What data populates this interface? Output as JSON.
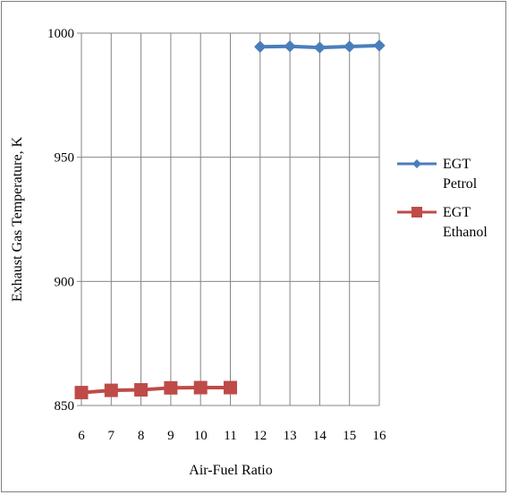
{
  "chart_data": {
    "type": "line",
    "title": "",
    "xlabel": "Air-Fuel Ratio",
    "ylabel": "Exhaust Gas Temperature, K",
    "x_categories": [
      "6",
      "7",
      "8",
      "9",
      "10",
      "11",
      "12",
      "13",
      "14",
      "15",
      "16"
    ],
    "y_ticks": [
      "850",
      "900",
      "950",
      "1000"
    ],
    "ylim": [
      850,
      1000
    ],
    "grid": "vertical and horizontal",
    "legend_position": "right",
    "series": [
      {
        "name_lines": [
          "EGT",
          "Petrol"
        ],
        "color": "#4a7ebb",
        "marker": "diamond",
        "x": [
          12,
          13,
          14,
          15,
          16
        ],
        "values": [
          994.5,
          994.7,
          994.2,
          994.6,
          995.0
        ]
      },
      {
        "name_lines": [
          "EGT",
          "Ethanol"
        ],
        "color": "#be4b48",
        "marker": "square",
        "x": [
          6,
          7,
          8,
          9,
          10,
          11
        ],
        "values": [
          855.2,
          856.1,
          856.3,
          857.1,
          857.2,
          857.2
        ]
      }
    ]
  }
}
